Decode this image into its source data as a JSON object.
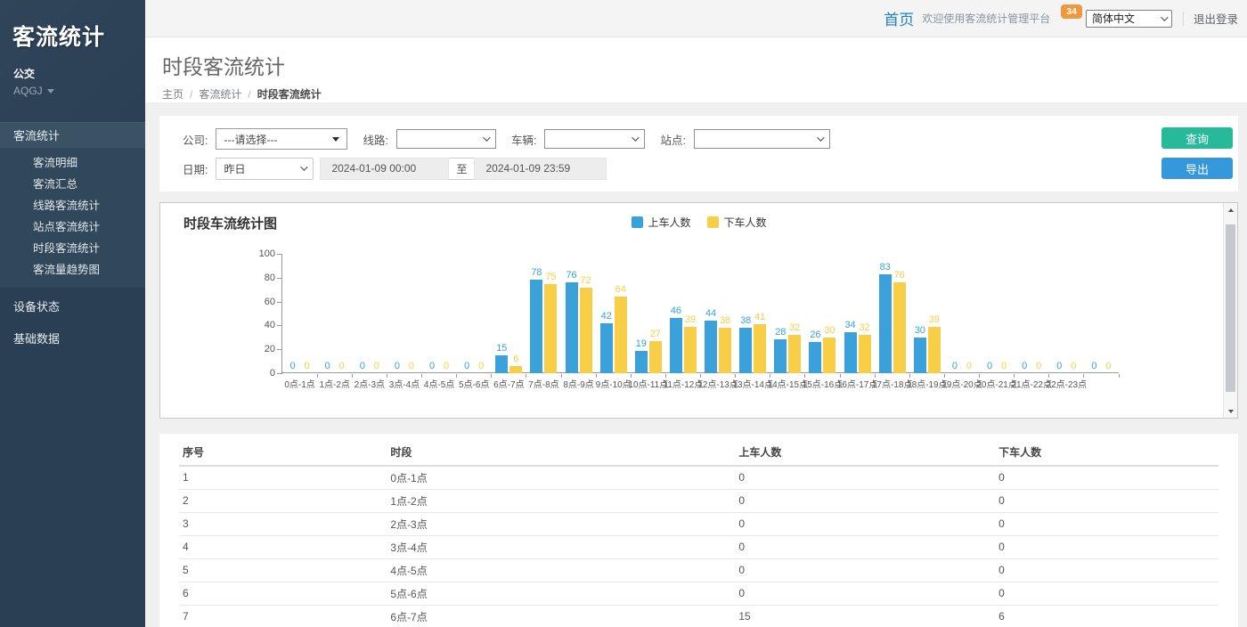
{
  "sidebar": {
    "brand": "客流统计",
    "org": "公交",
    "org_code": "AQGJ",
    "menu": {
      "section": "客流统计",
      "items": [
        "客流明细",
        "客流汇总",
        "线路客流统计",
        "站点客流统计",
        "时段客流统计",
        "客流量趋势图"
      ],
      "others": [
        "设备状态",
        "基础数据"
      ]
    }
  },
  "navbar": {
    "home": "首页",
    "welcome": "欢迎使用客流统计管理平台",
    "badge": "34",
    "language": "简体中文",
    "logout": "退出登录"
  },
  "page": {
    "title": "时段客流统计",
    "breadcrumb": [
      "主页",
      "客流统计",
      "时段客流统计"
    ],
    "separator": "/"
  },
  "filters": {
    "company_label": "公司:",
    "company_value": "---请选择---",
    "line_label": "线路:",
    "line_value": "",
    "vehicle_label": "车辆:",
    "vehicle_value": "",
    "station_label": "站点:",
    "station_value": "",
    "date_label": "日期:",
    "date_preset": "昨日",
    "date_start": "2024-01-09 00:00",
    "date_to": "至",
    "date_end": "2024-01-09 23:59",
    "query_button": "查询",
    "export_button": "导出"
  },
  "chart_data": {
    "type": "bar",
    "title": "时段车流统计图",
    "categories": [
      "0点-1点",
      "1点-2点",
      "2点-3点",
      "3点-4点",
      "4点-5点",
      "5点-6点",
      "6点-7点",
      "7点-8点",
      "8点-9点",
      "9点-10点",
      "10点-11点",
      "11点-12点",
      "12点-13点",
      "13点-14点",
      "14点-15点",
      "15点-16点",
      "16点-17点",
      "17点-18点",
      "18点-19点",
      "19点-20点",
      "20点-21点",
      "21点-22点",
      "22点-23点",
      ""
    ],
    "series": [
      {
        "name": "上车人数",
        "color": "#3BA1DB",
        "values": [
          0,
          0,
          0,
          0,
          0,
          0,
          15,
          78,
          76,
          42,
          19,
          46,
          44,
          38,
          28,
          26,
          34,
          83,
          30,
          0,
          0,
          0,
          0,
          0
        ]
      },
      {
        "name": "下车人数",
        "color": "#F7CE46",
        "values": [
          0,
          0,
          0,
          0,
          0,
          0,
          6,
          75,
          72,
          64,
          27,
          39,
          38,
          41,
          32,
          30,
          32,
          76,
          39,
          0,
          0,
          0,
          0,
          0
        ]
      }
    ],
    "ylim": [
      0,
      100
    ],
    "yticks": [
      0,
      20,
      40,
      60,
      80,
      100
    ],
    "xlabel": "",
    "ylabel": "",
    "legend_position": "top-center",
    "grid": false
  },
  "table": {
    "headers": [
      "序号",
      "时段",
      "上车人数",
      "下车人数"
    ],
    "rows": [
      [
        "1",
        "0点-1点",
        "0",
        "0"
      ],
      [
        "2",
        "1点-2点",
        "0",
        "0"
      ],
      [
        "3",
        "2点-3点",
        "0",
        "0"
      ],
      [
        "4",
        "3点-4点",
        "0",
        "0"
      ],
      [
        "5",
        "4点-5点",
        "0",
        "0"
      ],
      [
        "6",
        "5点-6点",
        "0",
        "0"
      ],
      [
        "7",
        "6点-7点",
        "15",
        "6"
      ]
    ]
  }
}
